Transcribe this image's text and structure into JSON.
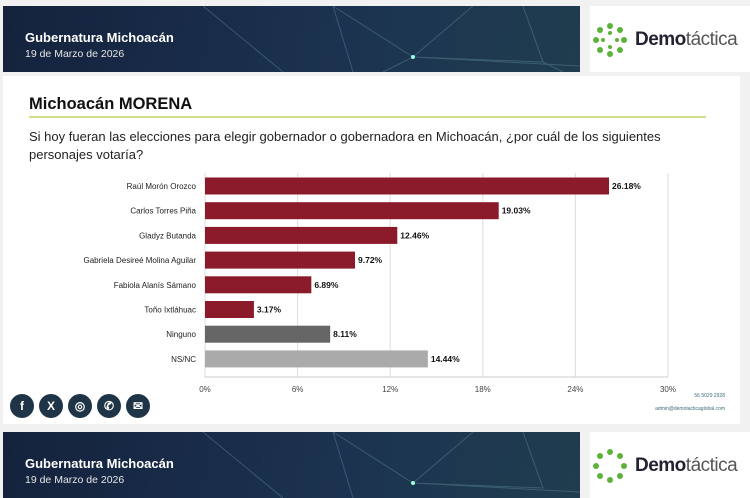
{
  "header": {
    "title": "Gubernatura Michoacán",
    "date": "19 de Marzo de 2026",
    "brand_bold": "Demo",
    "brand_light": "táctica"
  },
  "slide": {
    "title": "Michoacán MORENA",
    "question": "Si hoy fueran las elecciones para elegir gobernador o gobernadora en Michoacán, ¿por cuál de los siguientes personajes votaría?"
  },
  "footer": {
    "phone": "56 5029 2928",
    "email": "admin@demotacticaglobal.com",
    "icons": [
      "facebook-icon",
      "x-icon",
      "instagram-icon",
      "phone-icon",
      "mail-icon"
    ]
  },
  "chart_data": {
    "type": "bar",
    "orientation": "horizontal",
    "categories": [
      "Raúl Morón Orozco",
      "Carlos Torres Piña",
      "Gladyz Butanda",
      "Gabriela Desireé Molina Aguilar",
      "Fabiola Alanís Sámano",
      "Toño Ixtláhuac",
      "Ninguno",
      "NS/NC"
    ],
    "values": [
      26.18,
      19.03,
      12.46,
      9.72,
      6.89,
      3.17,
      8.11,
      14.44
    ],
    "labels": [
      "26.18%",
      "19.03%",
      "12.46%",
      "9.72%",
      "6.89%",
      "3.17%",
      "8.11%",
      "14.44%"
    ],
    "colors": [
      "#8b1a2b",
      "#8b1a2b",
      "#8b1a2b",
      "#8b1a2b",
      "#8b1a2b",
      "#8b1a2b",
      "#666666",
      "#aaaaaa"
    ],
    "xlim": [
      0,
      30
    ],
    "ticks": [
      "0%",
      "6%",
      "12%",
      "18%",
      "24%",
      "30%"
    ],
    "grid": true
  }
}
